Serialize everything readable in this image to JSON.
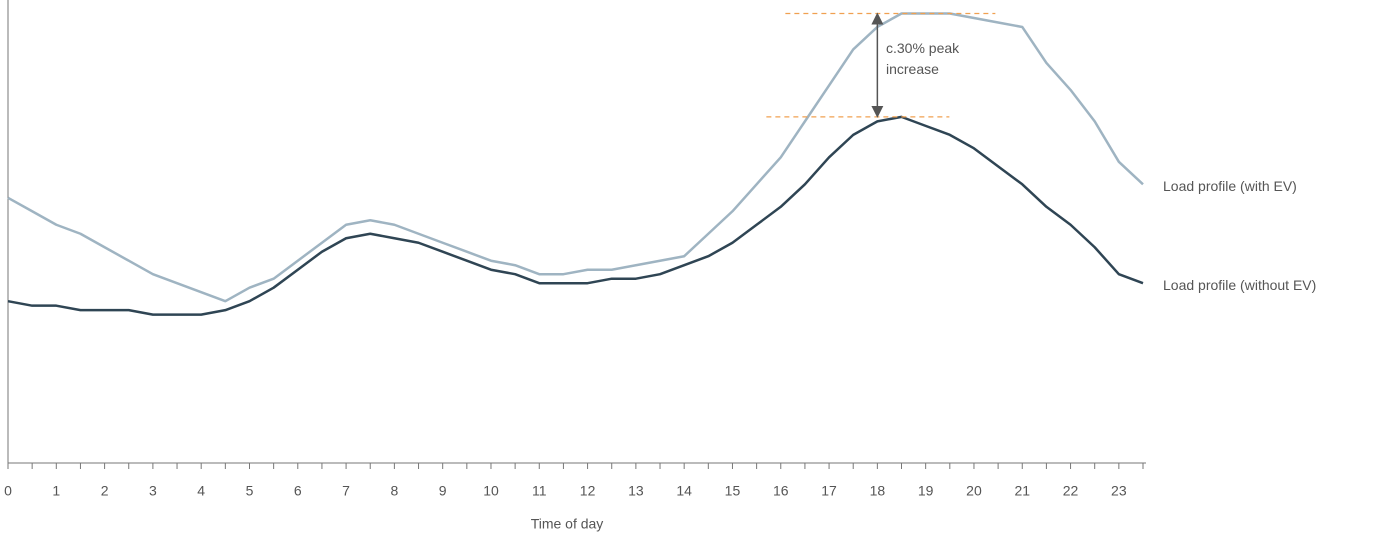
{
  "chart_data": {
    "type": "line",
    "x_label": "Time of day",
    "annotation": "c.30% peak increase",
    "x": [
      0,
      0.5,
      1,
      1.5,
      2,
      2.5,
      3,
      3.5,
      4,
      4.5,
      5,
      5.5,
      6,
      6.5,
      7,
      7.5,
      8,
      8.5,
      9,
      9.5,
      10,
      10.5,
      11,
      11.5,
      12,
      12.5,
      13,
      13.5,
      14,
      14.5,
      15,
      15.5,
      16,
      16.5,
      17,
      17.5,
      18,
      18.5,
      19,
      19.5,
      20,
      20.5,
      21,
      21.5,
      22,
      22.5,
      23,
      23.5
    ],
    "xlim": [
      0,
      23.5
    ],
    "xticks": [
      0,
      1,
      2,
      3,
      4,
      5,
      6,
      7,
      8,
      9,
      10,
      11,
      12,
      13,
      14,
      15,
      16,
      17,
      18,
      19,
      20,
      21,
      22,
      23
    ],
    "ylim": [
      0,
      103
    ],
    "series": [
      {
        "name": "Load profile (with EV)",
        "color": "#9fb4c2",
        "values": [
          59,
          56,
          53,
          51,
          48,
          45,
          42,
          40,
          38,
          36,
          39,
          41,
          45,
          49,
          53,
          54,
          53,
          51,
          49,
          47,
          45,
          44,
          42,
          42,
          43,
          43,
          44,
          45,
          46,
          51,
          56,
          62,
          68,
          76,
          84,
          92,
          97,
          100,
          100,
          100,
          99,
          98,
          97,
          89,
          83,
          76,
          67,
          62
        ]
      },
      {
        "name": "Load profile (without EV)",
        "color": "#2f4554",
        "values": [
          36,
          35,
          35,
          34,
          34,
          34,
          33,
          33,
          33,
          34,
          36,
          39,
          43,
          47,
          50,
          51,
          50,
          49,
          47,
          45,
          43,
          42,
          40,
          40,
          40,
          41,
          41,
          42,
          44,
          46,
          49,
          53,
          57,
          62,
          68,
          73,
          76,
          77,
          75,
          73,
          70,
          66,
          62,
          57,
          53,
          48,
          42,
          40
        ]
      }
    ]
  }
}
